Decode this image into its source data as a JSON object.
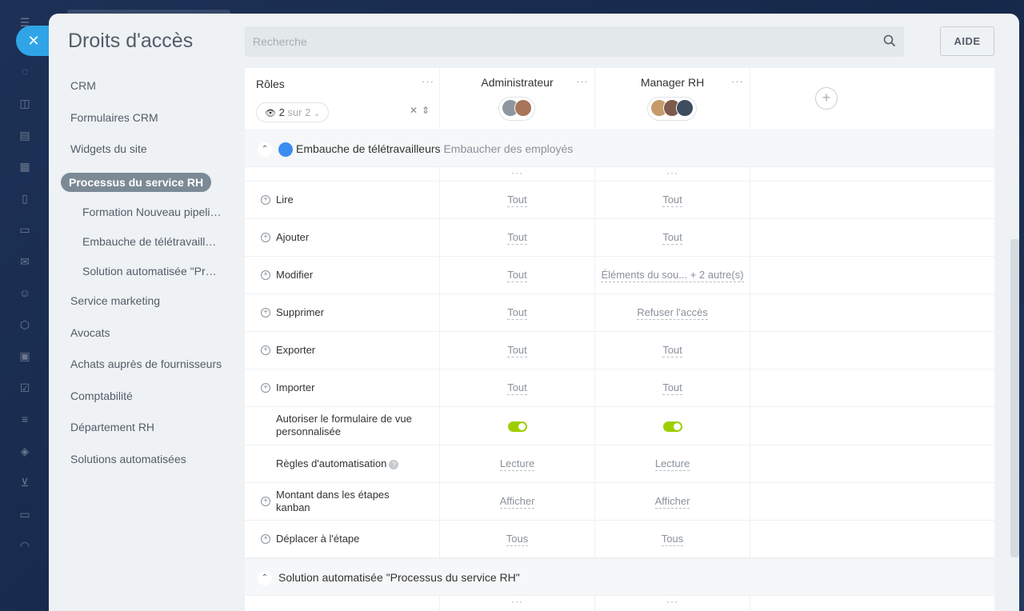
{
  "window": {
    "title": "Droits d'accès",
    "close_icon": "close-icon"
  },
  "search": {
    "placeholder": "Recherche",
    "value": ""
  },
  "help_button": "AIDE",
  "nav": {
    "items": [
      {
        "label": "CRM"
      },
      {
        "label": "Formulaires CRM"
      },
      {
        "label": "Widgets du site"
      },
      {
        "label": "Processus du service RH",
        "active": true
      },
      {
        "label": "Formation Nouveau pipeli…",
        "sub": true
      },
      {
        "label": "Embauche de télétravaill…",
        "sub": true
      },
      {
        "label": "Solution automatisée \"Pr…",
        "sub": true
      },
      {
        "label": "Service marketing"
      },
      {
        "label": "Avocats"
      },
      {
        "label": "Achats auprès de fournisseurs"
      },
      {
        "label": "Comptabilité"
      },
      {
        "label": "Département RH"
      },
      {
        "label": "Solutions automatisées"
      }
    ]
  },
  "grid": {
    "roles_header": "Rôles",
    "view_count": "2",
    "view_of": "sur 2",
    "columns": [
      {
        "title": "Administrateur"
      },
      {
        "title": "Manager RH"
      }
    ],
    "sections": [
      {
        "title": "Embauche de télétravailleurs",
        "subtitle": "Embaucher des employés",
        "rows": [
          {
            "label": "Lire",
            "values": [
              "Tout",
              "Tout"
            ]
          },
          {
            "label": "Ajouter",
            "values": [
              "Tout",
              "Tout"
            ]
          },
          {
            "label": "Modifier",
            "values": [
              "Tout",
              "Éléments du sou... + 2 autre(s)"
            ]
          },
          {
            "label": "Supprimer",
            "values": [
              "Tout",
              "Refuser l'accès"
            ]
          },
          {
            "label": "Exporter",
            "values": [
              "Tout",
              "Tout"
            ]
          },
          {
            "label": "Importer",
            "values": [
              "Tout",
              "Tout"
            ]
          },
          {
            "label_line1": "Autoriser le formulaire de vue",
            "label_line2": "personnalisée",
            "toggle": [
              true,
              true
            ]
          },
          {
            "label": "Règles d'automatisation",
            "values": [
              "Lecture",
              "Lecture"
            ]
          },
          {
            "label_line1": "Montant dans les étapes",
            "label_line2": "kanban",
            "values": [
              "Afficher",
              "Afficher"
            ]
          },
          {
            "label": "Déplacer à l'étape",
            "values": [
              "Tous",
              "Tous"
            ]
          }
        ]
      },
      {
        "title": "Solution automatisée \"Processus du service RH\""
      }
    ]
  },
  "colors": {
    "accent": "#2fa5e8",
    "toggle_on": "#9dcf00",
    "active_nav": "#7c8a96"
  }
}
